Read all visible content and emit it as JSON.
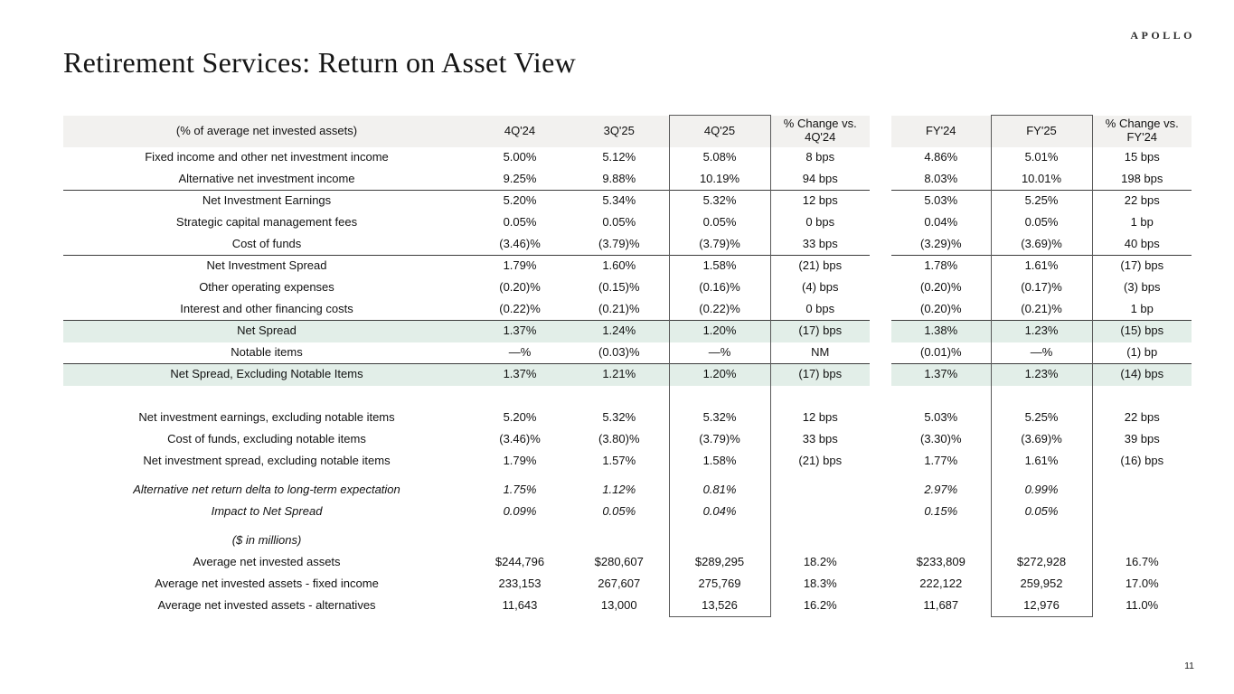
{
  "slide": {
    "title": "Retirement Services: Return on Asset View",
    "logo": "APOLLO",
    "page_number": "11"
  },
  "colors": {
    "header_bg": "#f2f1ef",
    "highlight_green": "#e2eee8",
    "rule_line": "#3c3c3c",
    "box_border": "#595959"
  },
  "table": {
    "header": {
      "label": "(% of average net invested assets)",
      "columns": [
        "4Q'24",
        "3Q'25",
        "4Q'25",
        "% Change vs. 4Q'24",
        "FY'24",
        "FY'25",
        "% Change vs. FY'24"
      ]
    },
    "rows": [
      {
        "type": "data",
        "label": "Fixed income and other net investment income",
        "values": [
          "5.00%",
          "5.12%",
          "5.08%",
          "8 bps",
          "4.86%",
          "5.01%",
          "15 bps"
        ]
      },
      {
        "type": "data",
        "label": "Alternative net investment income",
        "values": [
          "9.25%",
          "9.88%",
          "10.19%",
          "94 bps",
          "8.03%",
          "10.01%",
          "198 bps"
        ]
      },
      {
        "type": "data",
        "label": "Net Investment Earnings",
        "label_bold": true,
        "top_border": true,
        "values": [
          "5.20%",
          "5.34%",
          "5.32%",
          "12 bps",
          "5.03%",
          "5.25%",
          "22 bps"
        ]
      },
      {
        "type": "data",
        "label": "Strategic capital management fees",
        "values": [
          "0.05%",
          "0.05%",
          "0.05%",
          "0 bps",
          "0.04%",
          "0.05%",
          "1 bp"
        ]
      },
      {
        "type": "data",
        "label": "Cost of funds",
        "values": [
          "(3.46)%",
          "(3.79)%",
          "(3.79)%",
          "33 bps",
          "(3.29)%",
          "(3.69)%",
          "40 bps"
        ]
      },
      {
        "type": "data",
        "label": "Net Investment Spread",
        "bold": true,
        "top_border": true,
        "values": [
          "1.79%",
          "1.60%",
          "1.58%",
          "(21) bps",
          "1.78%",
          "1.61%",
          "(17) bps"
        ]
      },
      {
        "type": "data",
        "label": "Other operating expenses",
        "values": [
          "(0.20)%",
          "(0.15)%",
          "(0.16)%",
          "(4) bps",
          "(0.20)%",
          "(0.17)%",
          "(3) bps"
        ]
      },
      {
        "type": "data",
        "label": "Interest and other financing costs",
        "values": [
          "(0.22)%",
          "(0.21)%",
          "(0.22)%",
          "0 bps",
          "(0.20)%",
          "(0.21)%",
          "1 bp"
        ]
      },
      {
        "type": "data",
        "label": "Net Spread",
        "bold": true,
        "highlight": true,
        "top_border": true,
        "values": [
          "1.37%",
          "1.24%",
          "1.20%",
          "(17) bps",
          "1.38%",
          "1.23%",
          "(15) bps"
        ]
      },
      {
        "type": "data",
        "label": "Notable items",
        "values": [
          "—%",
          "(0.03)%",
          "—%",
          "NM",
          "(0.01)%",
          "—%",
          "(1) bp"
        ]
      },
      {
        "type": "data",
        "label": "Net Spread, Excluding Notable Items",
        "bold": true,
        "highlight": true,
        "top_border": true,
        "values": [
          "1.37%",
          "1.21%",
          "1.20%",
          "(17) bps",
          "1.37%",
          "1.23%",
          "(14) bps"
        ]
      },
      {
        "type": "spacer",
        "height": 24
      },
      {
        "type": "data",
        "label": "Net investment earnings, excluding notable items",
        "values": [
          "5.20%",
          "5.32%",
          "5.32%",
          "12 bps",
          "5.03%",
          "5.25%",
          "22 bps"
        ]
      },
      {
        "type": "data",
        "label": "Cost of funds, excluding notable items",
        "values": [
          "(3.46)%",
          "(3.80)%",
          "(3.79)%",
          "33 bps",
          "(3.30)%",
          "(3.69)%",
          "39 bps"
        ]
      },
      {
        "type": "data",
        "label": "Net investment spread, excluding notable items",
        "values": [
          "1.79%",
          "1.57%",
          "1.58%",
          "(21) bps",
          "1.77%",
          "1.61%",
          "(16) bps"
        ]
      },
      {
        "type": "spacer",
        "height": 8
      },
      {
        "type": "data",
        "label": "Alternative net return delta to long-term expectation",
        "italic": true,
        "values": [
          "1.75%",
          "1.12%",
          "0.81%",
          "",
          "2.97%",
          "0.99%",
          ""
        ]
      },
      {
        "type": "data",
        "label": "Impact to Net Spread",
        "italic": true,
        "indent": 1,
        "values": [
          "0.09%",
          "0.05%",
          "0.04%",
          "",
          "0.15%",
          "0.05%",
          ""
        ]
      },
      {
        "type": "spacer",
        "height": 8
      },
      {
        "type": "data",
        "label": "($ in millions)",
        "italic": true,
        "values": [
          "",
          "",
          "",
          "",
          "",
          "",
          ""
        ]
      },
      {
        "type": "data",
        "label": "Average net invested assets",
        "values": [
          "$244,796",
          "$280,607",
          "$289,295",
          "18.2%",
          "$233,809",
          "$272,928",
          "16.7%"
        ]
      },
      {
        "type": "data",
        "label": "Average net invested assets - fixed income",
        "indent": 1,
        "values": [
          "233,153",
          "267,607",
          "275,769",
          "18.3%",
          "222,122",
          "259,952",
          "17.0%"
        ]
      },
      {
        "type": "data",
        "label": "Average net invested assets - alternatives",
        "indent": 1,
        "values": [
          "11,643",
          "13,000",
          "13,526",
          "16.2%",
          "11,687",
          "12,976",
          "11.0%"
        ]
      }
    ]
  }
}
